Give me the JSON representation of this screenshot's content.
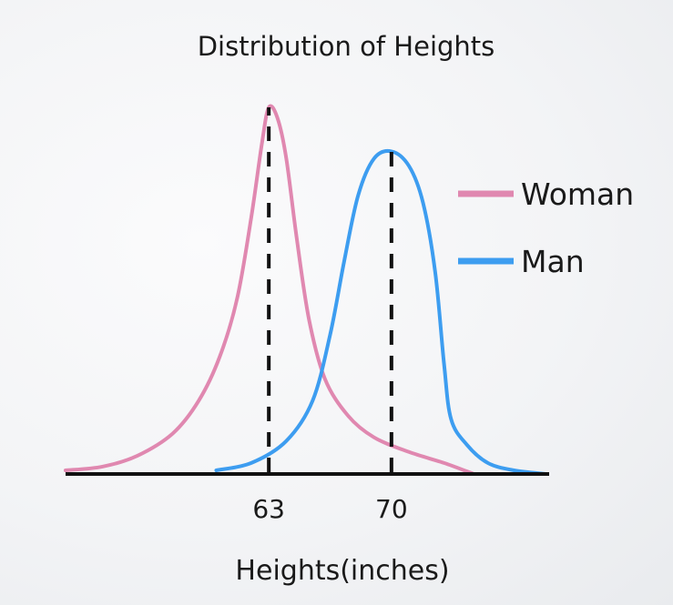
{
  "chart_data": {
    "type": "line",
    "title": "Distribution of Heights",
    "xlabel": "Heights(inches)",
    "ylabel": "",
    "xticks": [
      63,
      70
    ],
    "xlim": [
      51.4,
      79.0
    ],
    "legend_position": "right",
    "series": [
      {
        "name": "Woman",
        "color": "#e088b0",
        "points": [
          [
            51.4,
            0.01
          ],
          [
            53.5,
            0.02
          ],
          [
            55.5,
            0.05
          ],
          [
            57.5,
            0.11
          ],
          [
            59.0,
            0.2
          ],
          [
            60.2,
            0.32
          ],
          [
            61.2,
            0.48
          ],
          [
            62.0,
            0.7
          ],
          [
            62.6,
            0.9
          ],
          [
            63.0,
            1.0
          ],
          [
            63.5,
            0.97
          ],
          [
            64.0,
            0.86
          ],
          [
            64.6,
            0.64
          ],
          [
            65.3,
            0.42
          ],
          [
            66.2,
            0.26
          ],
          [
            67.5,
            0.16
          ],
          [
            69.0,
            0.1
          ],
          [
            71.0,
            0.06
          ],
          [
            73.0,
            0.03
          ],
          [
            74.7,
            0.0
          ]
        ]
      },
      {
        "name": "Man",
        "color": "#3d9df0",
        "points": [
          [
            60.0,
            0.01
          ],
          [
            62.0,
            0.03
          ],
          [
            64.0,
            0.09
          ],
          [
            65.5,
            0.2
          ],
          [
            66.5,
            0.38
          ],
          [
            67.3,
            0.58
          ],
          [
            68.1,
            0.76
          ],
          [
            69.0,
            0.86
          ],
          [
            70.0,
            0.88
          ],
          [
            71.0,
            0.84
          ],
          [
            71.8,
            0.74
          ],
          [
            72.5,
            0.55
          ],
          [
            73.0,
            0.3
          ],
          [
            73.4,
            0.15
          ],
          [
            74.3,
            0.08
          ],
          [
            75.5,
            0.03
          ],
          [
            77.0,
            0.01
          ],
          [
            78.8,
            0.0
          ]
        ]
      }
    ],
    "reference_lines": [
      {
        "x": 63,
        "y_top": 1.0,
        "style": "dashed",
        "color": "#111111"
      },
      {
        "x": 70,
        "y_top": 0.88,
        "style": "dashed",
        "color": "#111111"
      }
    ],
    "axis_color": "#111111",
    "grid": false
  }
}
